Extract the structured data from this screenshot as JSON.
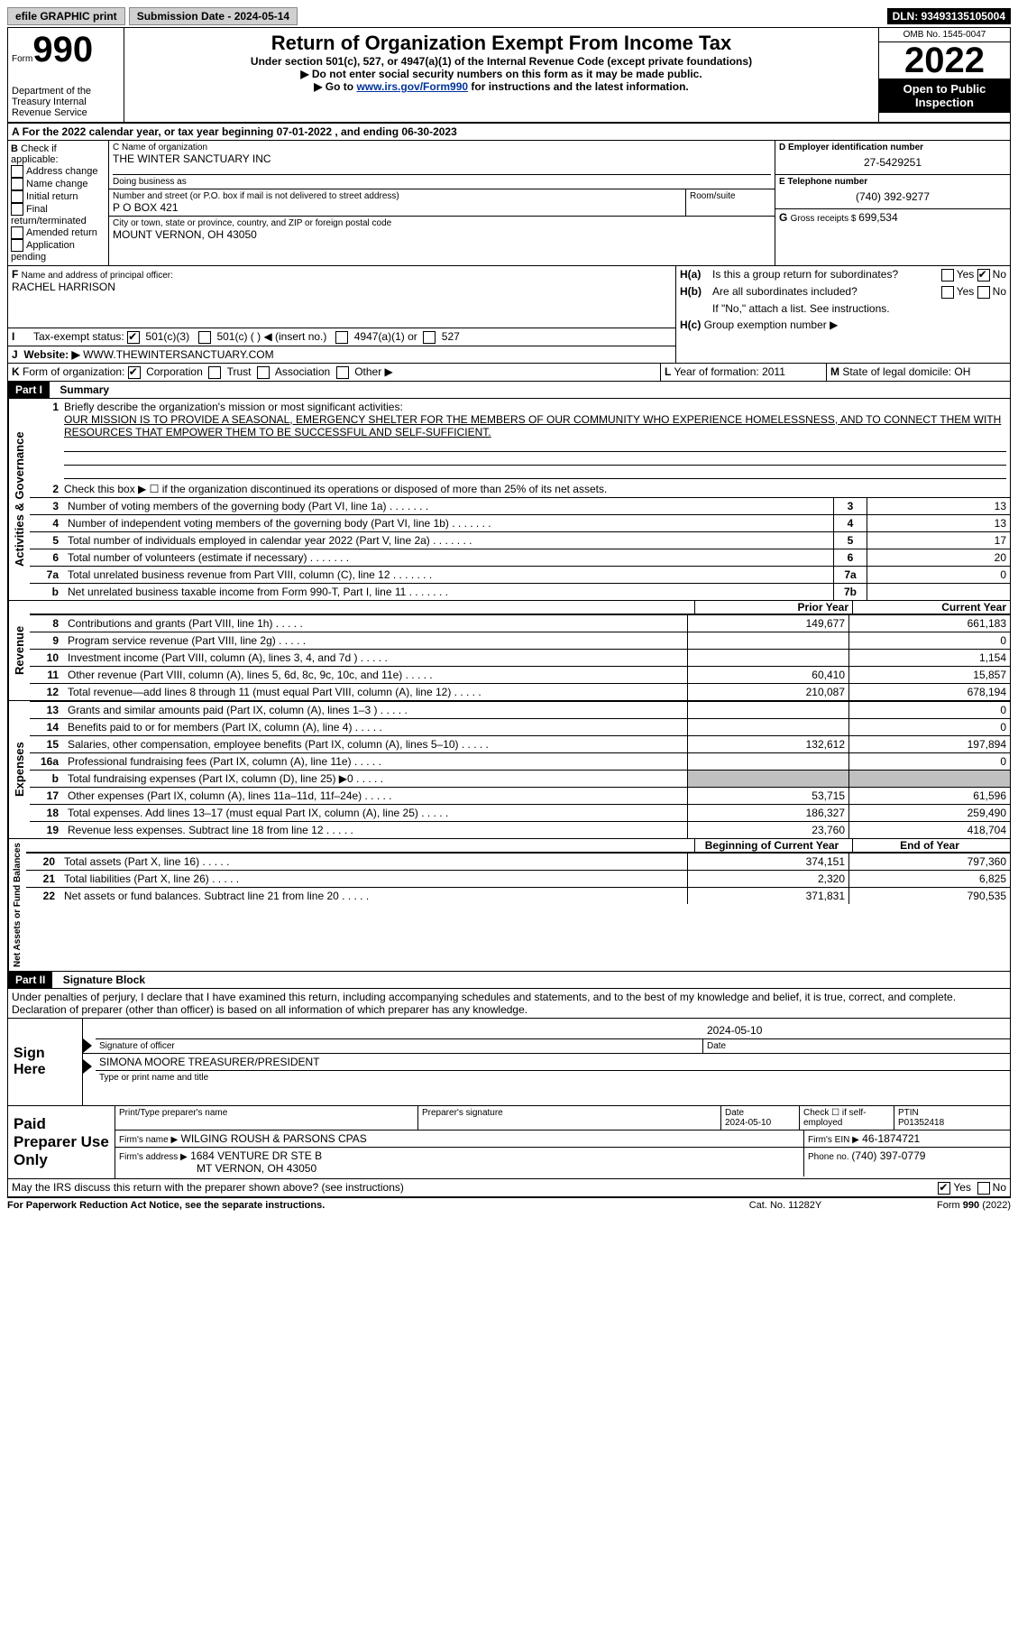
{
  "top_bar": {
    "efile_label": "efile GRAPHIC print",
    "submission_label": "Submission Date - 2024-05-14",
    "dln_label": "DLN: 93493135105004"
  },
  "header": {
    "form_label": "Form",
    "form_number": "990",
    "dept_text": "Department of the Treasury Internal Revenue Service",
    "title": "Return of Organization Exempt From Income Tax",
    "subtitle": "Under section 501(c), 527, or 4947(a)(1) of the Internal Revenue Code (except private foundations)",
    "note1": "▶ Do not enter social security numbers on this form as it may be made public.",
    "note2_pre": "▶ Go to ",
    "note2_link": "www.irs.gov/Form990",
    "note2_post": " for instructions and the latest information.",
    "omb": "OMB No. 1545-0047",
    "year": "2022",
    "open_inspection": "Open to Public Inspection"
  },
  "periodA": "For the 2022 calendar year, or tax year beginning 07-01-2022   , and ending 06-30-2023",
  "sectionB": {
    "title": "B ",
    "subtitle": "Check if applicable:",
    "options": [
      "Address change",
      "Name change",
      "Initial return",
      "Final return/terminated",
      "Amended return",
      "Application pending"
    ]
  },
  "sectionC": {
    "name_of_org_label": "C Name of organization",
    "org_name": "THE WINTER SANCTUARY INC",
    "dba_label": "Doing business as",
    "addr_label": "Number and street (or P.O. box if mail is not delivered to street address)",
    "room_label": "Room/suite",
    "addr": "P O BOX 421",
    "city_label": "City or town, state or province, country, and ZIP or foreign postal code",
    "city": "MOUNT VERNON, OH   43050"
  },
  "sectionD": {
    "label": "D Employer identification number",
    "value": "27-5429251"
  },
  "sectionE": {
    "label": "E Telephone number",
    "value": "(740) 392-9277"
  },
  "sectionG": {
    "label": "G ",
    "label2": "Gross receipts $ ",
    "value": "699,534"
  },
  "sectionF": {
    "label": "F ",
    "text": "Name and address of principal officer:",
    "name": "RACHEL HARRISON"
  },
  "sectionH": {
    "ha_label": "H(a)",
    "ha_text": "Is this a group return for subordinates?",
    "hb_label": "H(b)",
    "hb_text": "Are all subordinates included?",
    "hb_note": "If \"No,\" attach a list. See instructions.",
    "hc_label": "H(c)",
    "hc_text": "Group exemption number ▶",
    "yes": "Yes",
    "no": "No"
  },
  "sectionI": {
    "label": "I",
    "text": "Tax-exempt status:",
    "o1": "501(c)(3)",
    "o2": "501(c) (  ) ◀ (insert no.)",
    "o3": "4947(a)(1) or",
    "o4": "527"
  },
  "sectionJ": {
    "label": "J",
    "text": "Website: ▶",
    "value": "WWW.THEWINTERSANCTUARY.COM"
  },
  "sectionK": {
    "label": "K ",
    "text": "Form of organization:",
    "o1": "Corporation",
    "o2": "Trust",
    "o3": "Association",
    "o4": "Other ▶"
  },
  "sectionL": {
    "label": "L ",
    "text": "Year of formation: ",
    "value": "2011"
  },
  "sectionM": {
    "label": "M ",
    "text": "State of legal domicile: ",
    "value": "OH"
  },
  "part1": {
    "label": "Part I",
    "title": "Summary",
    "activities_label": "Activities & Governance",
    "revenue_label": "Revenue",
    "expenses_label": "Expenses",
    "netassets_label": "Net Assets or Fund Balances",
    "q1_label": "1",
    "q1_text": "Briefly describe the organization's mission or most significant activities:",
    "mission": "OUR MISSION IS TO PROVIDE A SEASONAL, EMERGENCY SHELTER FOR THE MEMBERS OF OUR COMMUNITY WHO EXPERIENCE HOMELESSNESS, AND TO CONNECT THEM WITH RESOURCES THAT EMPOWER THEM TO BE SUCCESSFUL AND SELF-SUFFICIENT.",
    "q2": "Check this box ▶ ☐ if the organization discontinued its operations or disposed of more than 25% of its net assets.",
    "governance_rows": [
      {
        "n": "3",
        "text": "Number of voting members of the governing body (Part VI, line 1a)",
        "key": "3",
        "val": "13"
      },
      {
        "n": "4",
        "text": "Number of independent voting members of the governing body (Part VI, line 1b)",
        "key": "4",
        "val": "13"
      },
      {
        "n": "5",
        "text": "Total number of individuals employed in calendar year 2022 (Part V, line 2a)",
        "key": "5",
        "val": "17"
      },
      {
        "n": "6",
        "text": "Total number of volunteers (estimate if necessary)",
        "key": "6",
        "val": "20"
      },
      {
        "n": "7a",
        "text": "Total unrelated business revenue from Part VIII, column (C), line 12",
        "key": "7a",
        "val": "0"
      },
      {
        "n": "b",
        "text": "Net unrelated business taxable income from Form 990-T, Part I, line 11",
        "key": "7b",
        "val": ""
      }
    ],
    "prior_year_label": "Prior Year",
    "current_year_label": "Current Year",
    "begin_year_label": "Beginning of Current Year",
    "end_year_label": "End of Year",
    "revenue_rows": [
      {
        "n": "8",
        "text": "Contributions and grants (Part VIII, line 1h)",
        "prior": "149,677",
        "curr": "661,183"
      },
      {
        "n": "9",
        "text": "Program service revenue (Part VIII, line 2g)",
        "prior": "",
        "curr": "0"
      },
      {
        "n": "10",
        "text": "Investment income (Part VIII, column (A), lines 3, 4, and 7d )",
        "prior": "",
        "curr": "1,154"
      },
      {
        "n": "11",
        "text": "Other revenue (Part VIII, column (A), lines 5, 6d, 8c, 9c, 10c, and 11e)",
        "prior": "60,410",
        "curr": "15,857"
      },
      {
        "n": "12",
        "text": "Total revenue—add lines 8 through 11 (must equal Part VIII, column (A), line 12)",
        "prior": "210,087",
        "curr": "678,194"
      }
    ],
    "expense_rows": [
      {
        "n": "13",
        "text": "Grants and similar amounts paid (Part IX, column (A), lines 1–3 )",
        "prior": "",
        "curr": "0"
      },
      {
        "n": "14",
        "text": "Benefits paid to or for members (Part IX, column (A), line 4)",
        "prior": "",
        "curr": "0"
      },
      {
        "n": "15",
        "text": "Salaries, other compensation, employee benefits (Part IX, column (A), lines 5–10)",
        "prior": "132,612",
        "curr": "197,894"
      },
      {
        "n": "16a",
        "text": "Professional fundraising fees (Part IX, column (A), line 11e)",
        "prior": "",
        "curr": "0"
      },
      {
        "n": "b",
        "text": "Total fundraising expenses (Part IX, column (D), line 25) ▶0",
        "prior": "GREY",
        "curr": "GREY"
      },
      {
        "n": "17",
        "text": "Other expenses (Part IX, column (A), lines 11a–11d, 11f–24e)",
        "prior": "53,715",
        "curr": "61,596"
      },
      {
        "n": "18",
        "text": "Total expenses. Add lines 13–17 (must equal Part IX, column (A), line 25)",
        "prior": "186,327",
        "curr": "259,490"
      },
      {
        "n": "19",
        "text": "Revenue less expenses. Subtract line 18 from line 12",
        "prior": "23,760",
        "curr": "418,704"
      }
    ],
    "netassets_rows": [
      {
        "n": "20",
        "text": "Total assets (Part X, line 16)",
        "prior": "374,151",
        "curr": "797,360"
      },
      {
        "n": "21",
        "text": "Total liabilities (Part X, line 26)",
        "prior": "2,320",
        "curr": "6,825"
      },
      {
        "n": "22",
        "text": "Net assets or fund balances. Subtract line 21 from line 20",
        "prior": "371,831",
        "curr": "790,535"
      }
    ]
  },
  "part2": {
    "label": "Part II",
    "title": "Signature Block",
    "declaration": "Under penalties of perjury, I declare that I have examined this return, including accompanying schedules and statements, and to the best of my knowledge and belief, it is true, correct, and complete. Declaration of preparer (other than officer) is based on all information of which preparer has any knowledge.",
    "sign_here": "Sign Here",
    "sig_of_officer": "Signature of officer",
    "sig_date": "Date",
    "sig_date_val": "2024-05-10",
    "officer_name": "SIMONA MOORE  TREASURER/PRESIDENT",
    "type_print": "Type or print name and title",
    "paid_preparer": "Paid Preparer Use Only",
    "prep_name_label": "Print/Type preparer's name",
    "prep_sig_label": "Preparer's signature",
    "prep_date_label": "Date",
    "prep_date_val": "2024-05-10",
    "check_self_label": "Check ☐ if self-employed",
    "ptin_label": "PTIN",
    "ptin_val": "P01352418",
    "firm_name_label": "Firm's name    ▶",
    "firm_name": "WILGING ROUSH & PARSONS CPAS",
    "firm_ein_label": "Firm's EIN ▶",
    "firm_ein": "46-1874721",
    "firm_addr_label": "Firm's address ▶",
    "firm_addr1": "1684 VENTURE DR STE B",
    "firm_addr2": "MT VERNON, OH  43050",
    "phone_label": "Phone no. ",
    "phone": "(740) 397-0779",
    "may_irs": "May the IRS discuss this return with the preparer shown above? (see instructions)",
    "yes": "Yes",
    "no": "No"
  },
  "footer": {
    "paperwork": "For Paperwork Reduction Act Notice, see the separate instructions.",
    "cat": "Cat. No. 11282Y",
    "form": "Form 990 (2022)"
  }
}
